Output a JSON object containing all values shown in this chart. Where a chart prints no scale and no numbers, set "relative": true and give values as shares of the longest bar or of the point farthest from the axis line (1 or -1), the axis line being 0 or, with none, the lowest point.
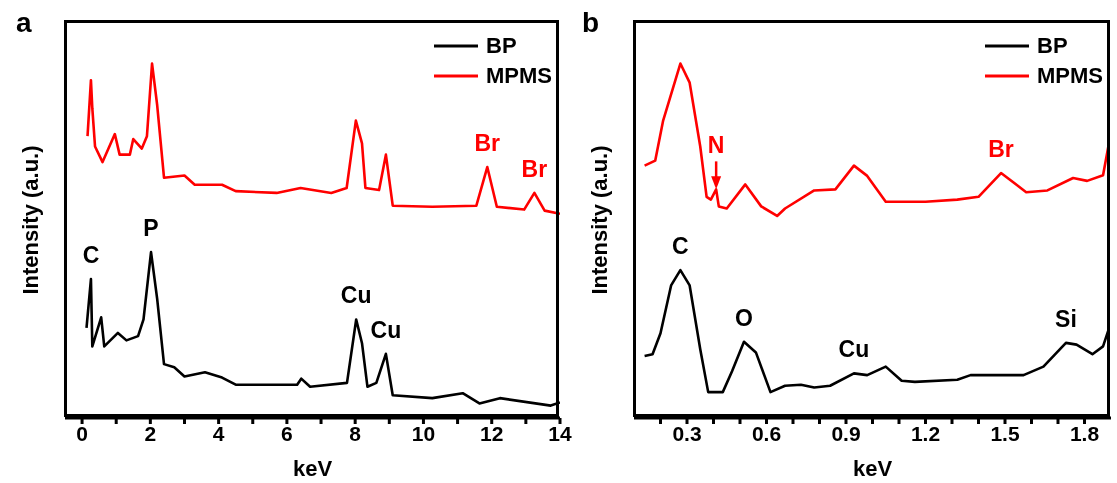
{
  "chart_data": [
    {
      "type": "line",
      "title": "a",
      "xlabel": "keV",
      "ylabel": "Intensity (a.u.)",
      "relative": true,
      "legend": "top right",
      "marker": "none",
      "line_style": "solid",
      "grid": false,
      "xlim": [
        -0.5,
        14
      ],
      "xticks": [
        0,
        {
          "value": 1,
          "label": null
        },
        2,
        {
          "value": 3,
          "label": null
        },
        4,
        {
          "value": 5,
          "label": null
        },
        6,
        {
          "value": 7,
          "label": null
        },
        8,
        {
          "value": 9,
          "label": null
        },
        10,
        {
          "value": 11,
          "label": null
        },
        12,
        {
          "value": 13,
          "label": null
        },
        14
      ],
      "series": [
        {
          "name": "BP",
          "color": "#000000",
          "x": [
            0.13,
            0.26,
            0.3,
            0.56,
            0.65,
            1.05,
            1.3,
            1.64,
            1.8,
            2.02,
            2.2,
            2.4,
            2.7,
            3.0,
            3.6,
            4.1,
            4.5,
            6.3,
            6.42,
            6.68,
            7.76,
            8.03,
            8.2,
            8.36,
            8.62,
            8.9,
            9.1,
            10.26,
            11.15,
            11.64,
            12.24,
            13.73,
            14.0
          ],
          "values": [
            0.254,
            0.392,
            0.202,
            0.284,
            0.202,
            0.24,
            0.219,
            0.231,
            0.278,
            0.468,
            0.336,
            0.152,
            0.143,
            0.117,
            0.129,
            0.114,
            0.094,
            0.094,
            0.111,
            0.088,
            0.099,
            0.278,
            0.211,
            0.088,
            0.099,
            0.181,
            0.064,
            0.056,
            0.07,
            0.041,
            0.056,
            0.035,
            0.044
          ]
        },
        {
          "name": "MPMS",
          "color": "#ff0000",
          "x": [
            0.16,
            0.26,
            0.3,
            0.38,
            0.6,
            0.96,
            1.1,
            1.4,
            1.5,
            1.75,
            1.9,
            2.05,
            2.2,
            2.4,
            3.0,
            3.3,
            4.1,
            4.5,
            5.7,
            6.4,
            7.3,
            7.75,
            8.02,
            8.2,
            8.3,
            8.7,
            8.9,
            9.1,
            10.26,
            11.55,
            11.87,
            12.15,
            12.95,
            13.25,
            13.55,
            14.0
          ],
          "values": [
            0.795,
            0.953,
            0.874,
            0.766,
            0.722,
            0.801,
            0.743,
            0.743,
            0.787,
            0.76,
            0.795,
            1.0,
            0.883,
            0.678,
            0.684,
            0.658,
            0.658,
            0.64,
            0.635,
            0.649,
            0.635,
            0.649,
            0.839,
            0.775,
            0.649,
            0.643,
            0.743,
            0.599,
            0.596,
            0.599,
            0.708,
            0.596,
            0.588,
            0.635,
            0.585,
            0.576
          ]
        }
      ],
      "annotations": [
        {
          "text": "C",
          "x": 0.26,
          "y": 0.392
        },
        {
          "text": "P",
          "x": 2.02,
          "y": 0.468
        },
        {
          "text": "Cu",
          "x": 8.03,
          "y": 0.278
        },
        {
          "text": "Cu",
          "x": 8.9,
          "y": 0.181
        },
        {
          "text": "Br",
          "x": 11.87,
          "y": 0.708
        },
        {
          "text": "Br",
          "x": 13.25,
          "y": 0.635
        }
      ]
    },
    {
      "type": "line",
      "title": "b",
      "xlabel": "keV",
      "ylabel": "Intensity (a.u.)",
      "relative": true,
      "legend": "top right",
      "marker": "none",
      "line_style": "solid",
      "grid": false,
      "xlim": [
        0.1,
        1.9
      ],
      "xticks": [
        {
          "value": 0.2,
          "label": null
        },
        0.3,
        {
          "value": 0.4,
          "label": null
        },
        {
          "value": 0.5,
          "label": null
        },
        0.6,
        {
          "value": 0.7,
          "label": null
        },
        {
          "value": 0.8,
          "label": null
        },
        0.9,
        {
          "value": 1.0,
          "label": null
        },
        {
          "value": 1.1,
          "label": null
        },
        1.2,
        {
          "value": 1.3,
          "label": null
        },
        {
          "value": 1.4,
          "label": null
        },
        1.5,
        {
          "value": 1.6,
          "label": null
        },
        {
          "value": 1.7,
          "label": null
        },
        1.8
      ],
      "series": [
        {
          "name": "BP",
          "color": "#000000",
          "x": [
            0.14,
            0.17,
            0.2,
            0.24,
            0.275,
            0.31,
            0.35,
            0.38,
            0.435,
            0.47,
            0.515,
            0.56,
            0.615,
            0.67,
            0.73,
            0.78,
            0.84,
            0.93,
            0.98,
            1.05,
            1.11,
            1.16,
            1.32,
            1.37,
            1.57,
            1.645,
            1.73,
            1.77,
            1.83,
            1.87,
            1.89
          ],
          "values": [
            0.175,
            0.18,
            0.239,
            0.374,
            0.417,
            0.374,
            0.194,
            0.073,
            0.073,
            0.132,
            0.215,
            0.185,
            0.073,
            0.091,
            0.094,
            0.086,
            0.091,
            0.126,
            0.121,
            0.145,
            0.105,
            0.102,
            0.108,
            0.121,
            0.121,
            0.145,
            0.212,
            0.207,
            0.18,
            0.202,
            0.247
          ]
        },
        {
          "name": "MPMS",
          "color": "#ff0000",
          "x": [
            0.14,
            0.18,
            0.21,
            0.275,
            0.31,
            0.35,
            0.374,
            0.39,
            0.41,
            0.42,
            0.45,
            0.52,
            0.58,
            0.64,
            0.67,
            0.78,
            0.86,
            0.93,
            0.98,
            1.05,
            1.2,
            1.32,
            1.4,
            1.485,
            1.58,
            1.66,
            1.757,
            1.81,
            1.87,
            1.89
          ],
          "values": [
            0.712,
            0.726,
            0.839,
            1.0,
            0.946,
            0.766,
            0.624,
            0.616,
            0.645,
            0.597,
            0.591,
            0.659,
            0.597,
            0.57,
            0.591,
            0.642,
            0.645,
            0.712,
            0.683,
            0.61,
            0.61,
            0.616,
            0.624,
            0.691,
            0.637,
            0.642,
            0.677,
            0.669,
            0.685,
            0.766
          ]
        }
      ],
      "annotations": [
        {
          "text": "N",
          "x": 0.41,
          "y": 0.645
        },
        {
          "text": "C",
          "x": 0.275,
          "y": 0.417
        },
        {
          "text": "O",
          "x": 0.515,
          "y": 0.215
        },
        {
          "text": "Cu",
          "x": 0.93,
          "y": 0.126
        },
        {
          "text": "Si",
          "x": 1.73,
          "y": 0.212
        },
        {
          "text": "Br",
          "x": 1.485,
          "y": 0.691
        }
      ]
    }
  ]
}
